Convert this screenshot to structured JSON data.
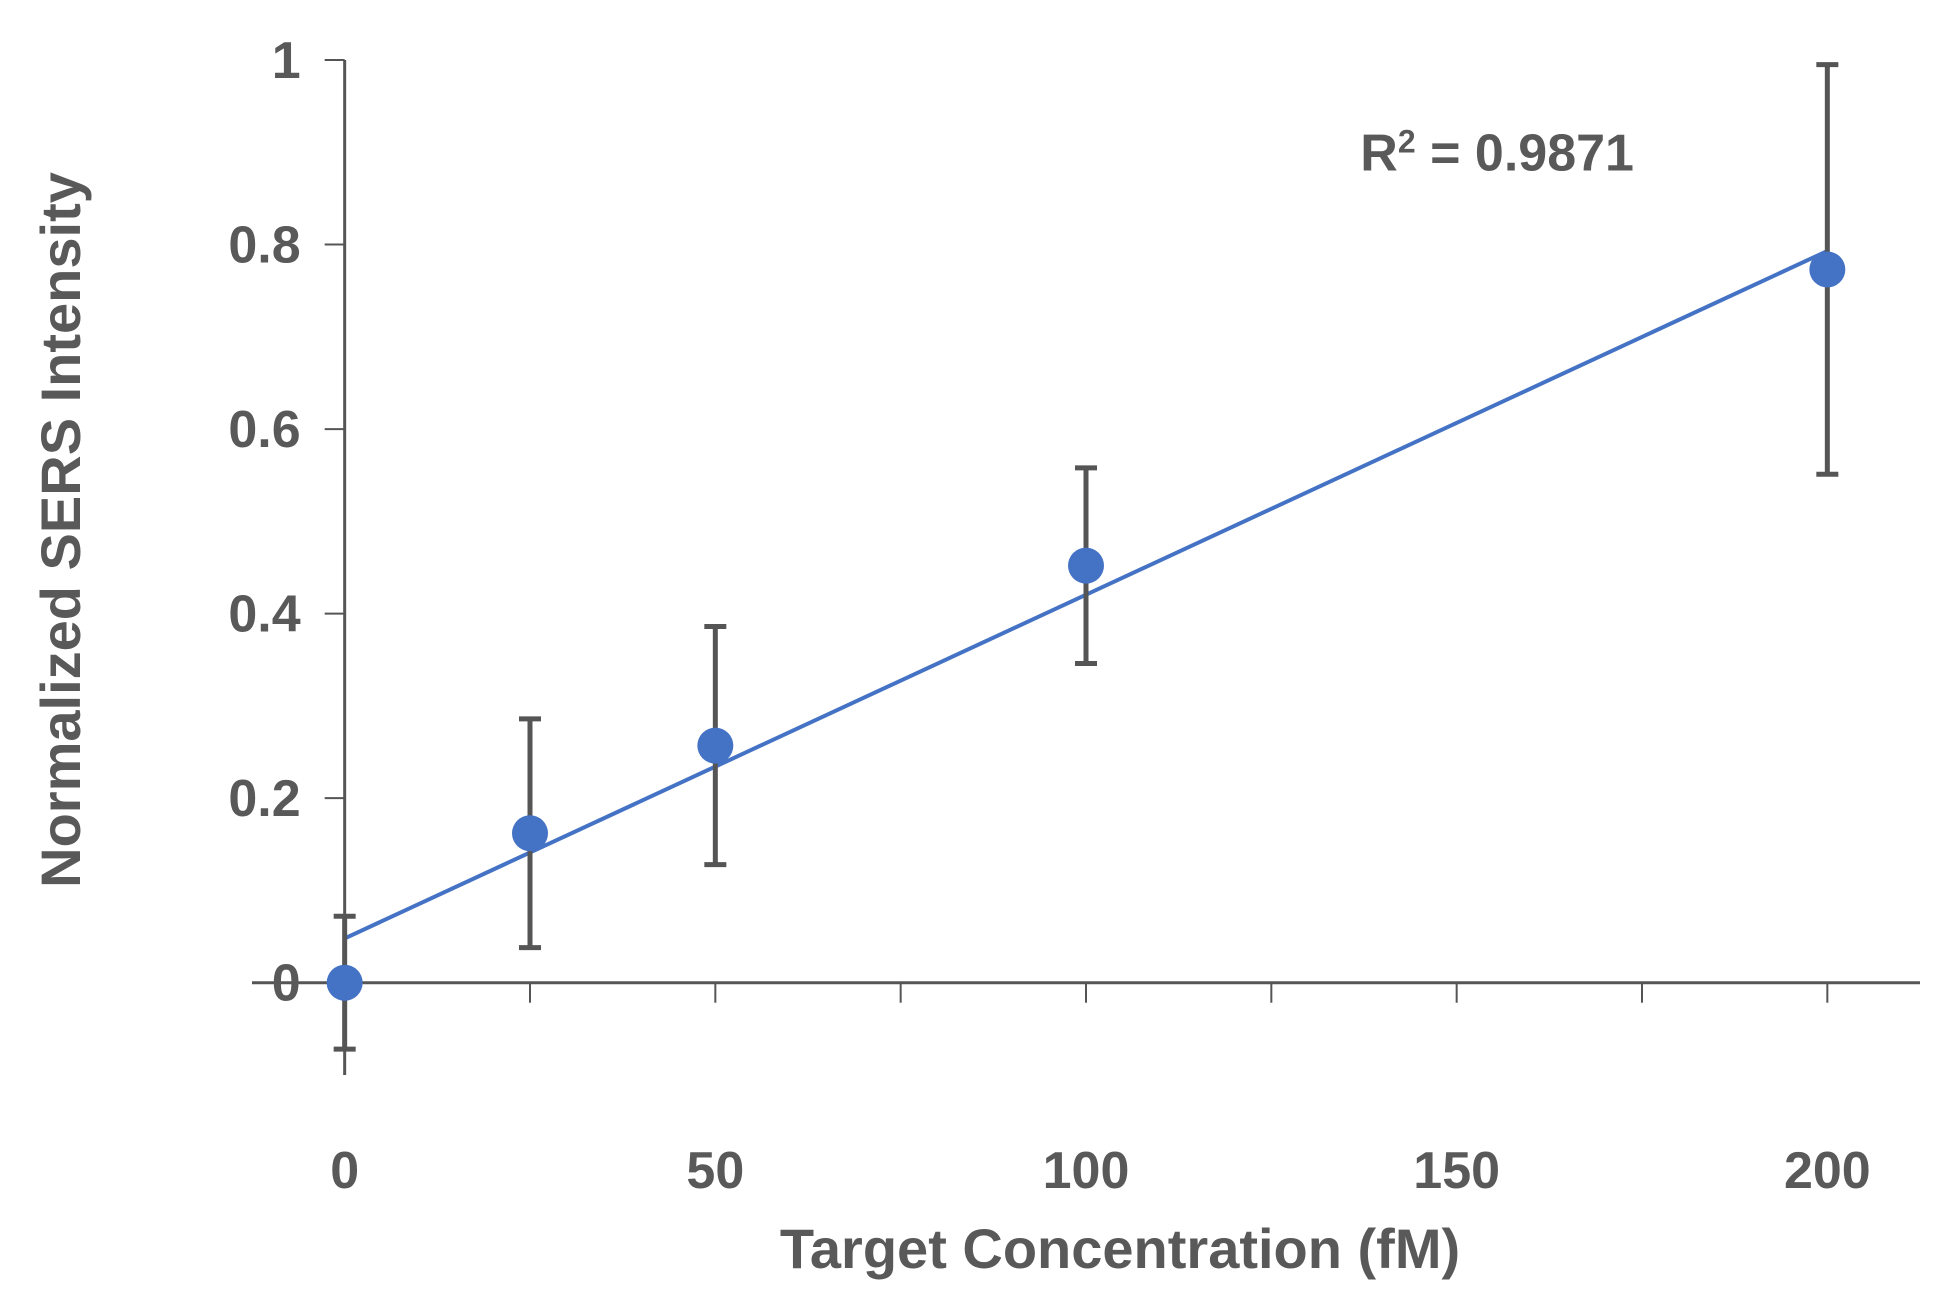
{
  "chart_data": {
    "type": "scatter",
    "title": "",
    "xlabel": "Target Concentration (fM)",
    "ylabel": "Normalized SERS Intensity",
    "xlim": [
      -12.5,
      212.5
    ],
    "ylim": [
      -0.1,
      1
    ],
    "x_ticks": [
      0,
      50,
      100,
      150,
      200
    ],
    "x_minor_ticks": [
      0,
      25,
      50,
      75,
      100,
      125,
      150,
      175,
      200
    ],
    "y_ticks": [
      0,
      0.2,
      0.4,
      0.6,
      0.8,
      1
    ],
    "x_tick_labels": [
      "0",
      "50",
      "100",
      "150",
      "200"
    ],
    "y_tick_labels": [
      "0",
      "0.2",
      "0.4",
      "0.6",
      "0.8",
      "1"
    ],
    "grid": false,
    "legend": "none",
    "series": [
      {
        "name": "Normalized SERS Intensity",
        "color": "#4472C4",
        "x": [
          0,
          25,
          50,
          100,
          200
        ],
        "y": [
          0.0,
          0.162,
          0.257,
          0.452,
          0.773
        ],
        "error": [
          0.072,
          0.124,
          0.129,
          0.106,
          0.222
        ]
      }
    ],
    "trendline": {
      "type": "linear",
      "color": "#4472C4",
      "slope": 0.003725,
      "intercept": 0.048,
      "x_range": [
        0,
        200
      ]
    },
    "annotations": [
      {
        "text_main": "R",
        "text_sup": "2",
        "text_rest": " = 0.9871",
        "x": 137,
        "y": 0.88
      }
    ],
    "colors": {
      "marker": "#4472C4",
      "axis": "#555555",
      "text": "#595959",
      "error_bar": "#555555"
    }
  }
}
